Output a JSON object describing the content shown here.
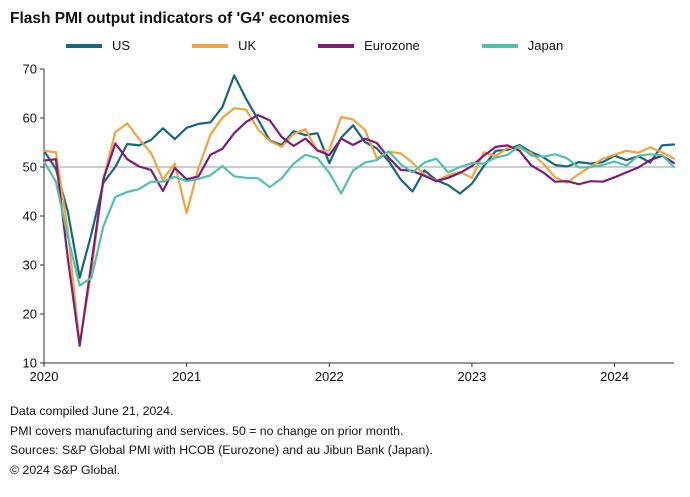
{
  "footnotes": [
    "Data compiled June 21, 2024.",
    "PMI covers manufacturing and services. 50 = no change on prior month.",
    "Sources: S&P Global PMI with HCOB (Eurozone) and au Jibun Bank (Japan).",
    "© 2024 S&P Global."
  ],
  "chart_data": {
    "type": "line",
    "title": "Flash PMI output indicators of 'G4' economies",
    "x_unit": "month",
    "x_range": "Jan 2020 - Jun 2024",
    "x_tick_labels": [
      "2020",
      "2021",
      "2022",
      "2023",
      "2024"
    ],
    "x_tick_month_indices": [
      0,
      12,
      24,
      36,
      48
    ],
    "ylim": [
      10,
      70
    ],
    "yticks": [
      10,
      20,
      30,
      40,
      50,
      60,
      70
    ],
    "reference_line": 50,
    "grid": false,
    "legend_position": "top",
    "axis_color": "#333333",
    "reference_line_color": "#9b9b9b",
    "series": [
      {
        "name": "US",
        "color": "#15687f",
        "values": [
          53.3,
          49.6,
          40.9,
          27.4,
          36.4,
          46.8,
          50.0,
          54.7,
          54.4,
          55.5,
          57.9,
          55.7,
          58.0,
          58.8,
          59.1,
          62.2,
          68.7,
          63.9,
          59.7,
          55.4,
          54.5,
          57.3,
          56.5,
          56.9,
          50.8,
          56.0,
          58.5,
          55.1,
          53.8,
          51.2,
          47.5,
          45.0,
          49.3,
          47.3,
          46.3,
          44.6,
          46.6,
          50.2,
          53.3,
          53.5,
          54.5,
          53.0,
          52.0,
          50.4,
          50.1,
          51.0,
          50.7,
          51.0,
          52.3,
          51.4,
          52.2,
          50.9,
          54.4,
          54.6
        ]
      },
      {
        "name": "UK",
        "color": "#f2a33c",
        "values": [
          53.3,
          53.0,
          37.1,
          13.8,
          28.9,
          47.6,
          57.1,
          58.9,
          55.7,
          52.9,
          47.4,
          50.7,
          40.6,
          49.8,
          56.6,
          60.0,
          62.0,
          61.7,
          57.7,
          55.3,
          54.1,
          56.8,
          57.7,
          53.2,
          53.4,
          60.2,
          59.7,
          57.6,
          51.8,
          53.1,
          52.8,
          50.9,
          48.4,
          47.2,
          48.3,
          49.0,
          47.8,
          53.0,
          52.2,
          53.9,
          53.9,
          52.8,
          50.7,
          47.9,
          46.8,
          48.6,
          50.1,
          51.7,
          52.5,
          53.3,
          52.9,
          54.0,
          53.0,
          51.7
        ]
      },
      {
        "name": "Eurozone",
        "color": "#7c1d7c",
        "values": [
          51.3,
          51.6,
          31.4,
          13.5,
          30.5,
          47.5,
          54.8,
          51.6,
          50.1,
          49.4,
          45.1,
          49.8,
          47.5,
          48.1,
          52.5,
          53.7,
          56.9,
          59.2,
          60.6,
          59.5,
          56.1,
          54.3,
          55.8,
          53.4,
          52.4,
          55.8,
          54.5,
          55.8,
          54.9,
          51.9,
          49.4,
          49.2,
          48.2,
          47.1,
          47.8,
          48.8,
          50.2,
          52.3,
          54.1,
          54.4,
          53.3,
          50.3,
          48.9,
          47.0,
          47.1,
          46.5,
          47.1,
          47.0,
          47.9,
          48.9,
          49.9,
          51.4,
          52.3,
          50.8
        ]
      },
      {
        "name": "Japan",
        "color": "#4ec2ab",
        "values": [
          51.1,
          47.0,
          35.8,
          25.8,
          27.4,
          37.9,
          43.9,
          44.9,
          45.5,
          47.0,
          47.0,
          48.0,
          47.1,
          47.6,
          48.3,
          50.2,
          48.1,
          47.8,
          47.7,
          45.9,
          47.7,
          50.7,
          52.5,
          51.8,
          48.8,
          44.6,
          49.3,
          50.9,
          51.4,
          53.2,
          50.6,
          48.9,
          50.9,
          51.7,
          48.9,
          50.0,
          50.8,
          50.7,
          51.9,
          52.5,
          54.3,
          52.3,
          52.1,
          52.6,
          51.8,
          49.9,
          50.0,
          50.4,
          51.1,
          50.3,
          52.3,
          52.6,
          52.4,
          50.0
        ]
      }
    ]
  }
}
